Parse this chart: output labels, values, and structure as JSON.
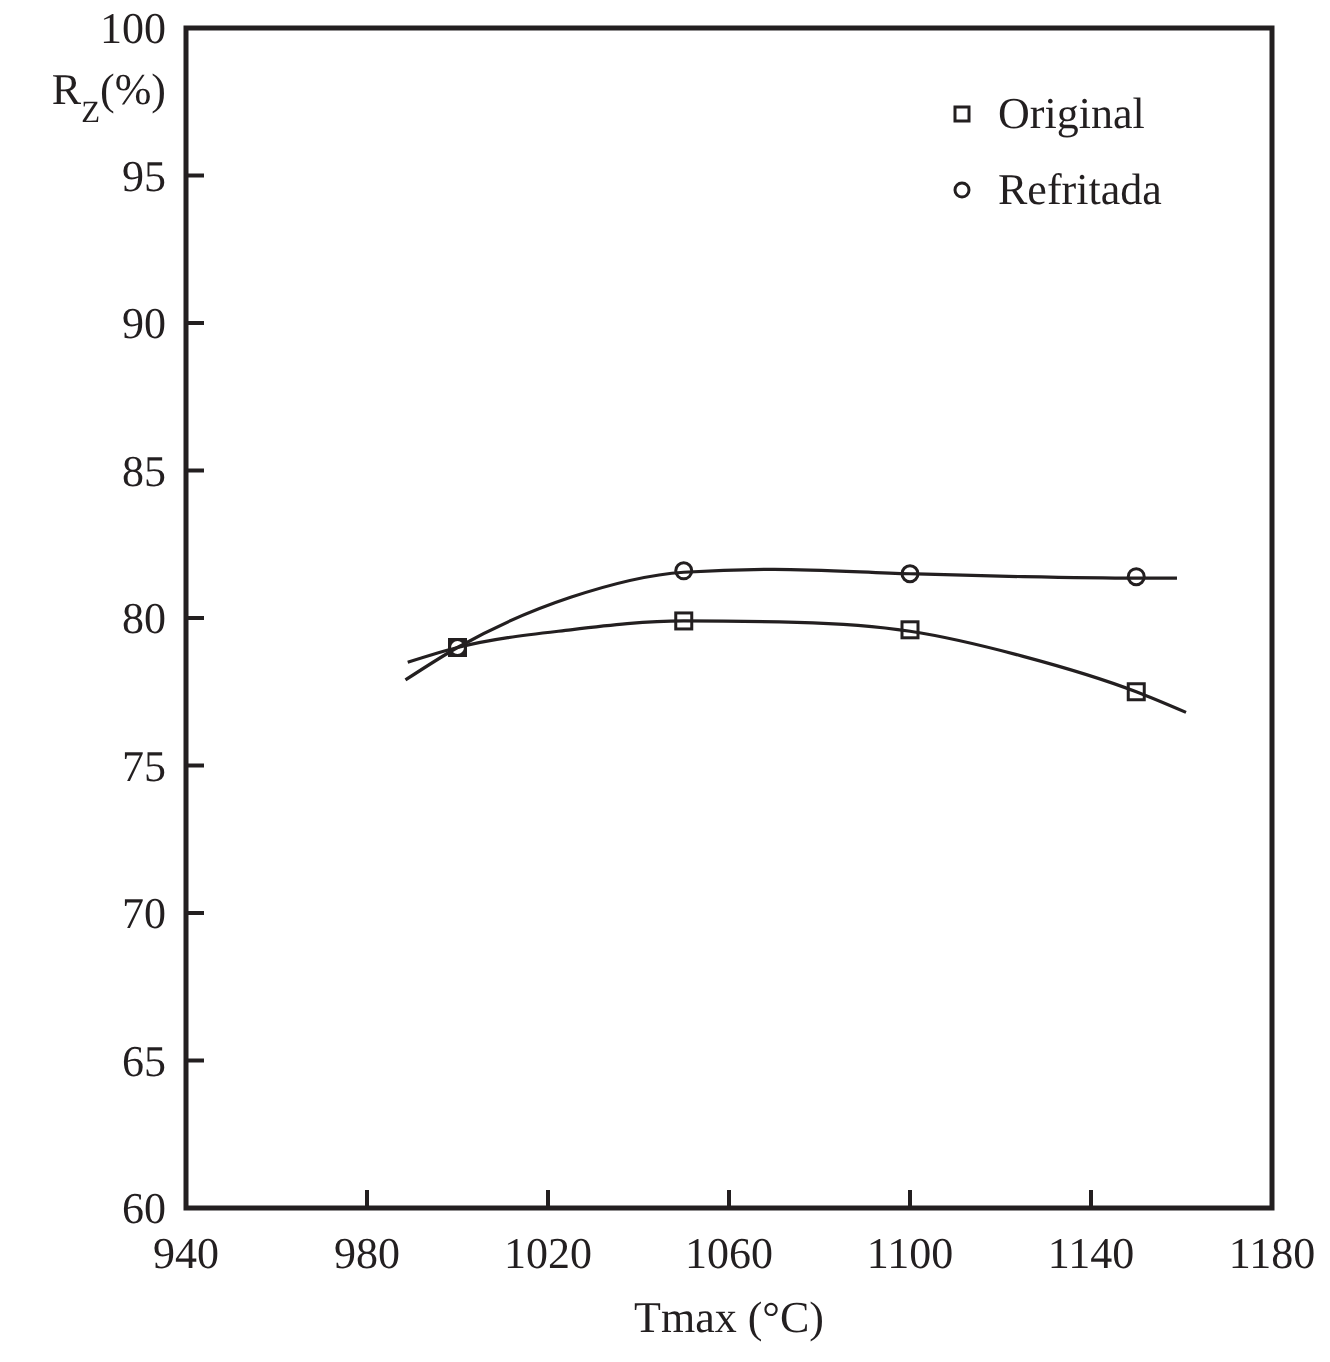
{
  "chart_data": {
    "type": "scatter",
    "xlabel": "Tmax (°C)",
    "ylabel": "R$_{Z}$(%)",
    "xlim": [
      940,
      1180
    ],
    "xticks": [
      940,
      980,
      1020,
      1060,
      1100,
      1140,
      1180
    ],
    "ylim": [
      60,
      100
    ],
    "yticks": [
      60,
      65,
      70,
      75,
      80,
      85,
      90,
      95,
      100
    ],
    "legend": "top right",
    "series": [
      {
        "name": "Original",
        "marker": "square",
        "color": "#231f20",
        "x": [
          1000,
          1050,
          1100,
          1150
        ],
        "values": [
          79.0,
          79.9,
          79.6,
          77.5
        ]
      },
      {
        "name": "Refritada",
        "marker": "circle",
        "color": "#231f20",
        "x": [
          1000,
          1050,
          1100,
          1150
        ],
        "values": [
          79.0,
          81.6,
          81.5,
          81.4
        ]
      },
      {
        "type": "line",
        "marker": "none",
        "color": "#231f20",
        "x": [
          989,
          1000,
          1025,
          1050,
          1075,
          1100,
          1125,
          1150,
          1161
        ],
        "values": [
          78.5,
          79.0,
          79.6,
          79.9,
          79.85,
          79.55,
          78.7,
          77.5,
          76.8
        ]
      },
      {
        "type": "line",
        "marker": "none",
        "color": "#231f20",
        "x": [
          988.5,
          1000,
          1025,
          1050,
          1070,
          1100,
          1125,
          1150,
          1159
        ],
        "values": [
          77.9,
          79.0,
          80.7,
          81.55,
          81.65,
          81.5,
          81.4,
          81.35,
          81.35
        ]
      }
    ]
  }
}
